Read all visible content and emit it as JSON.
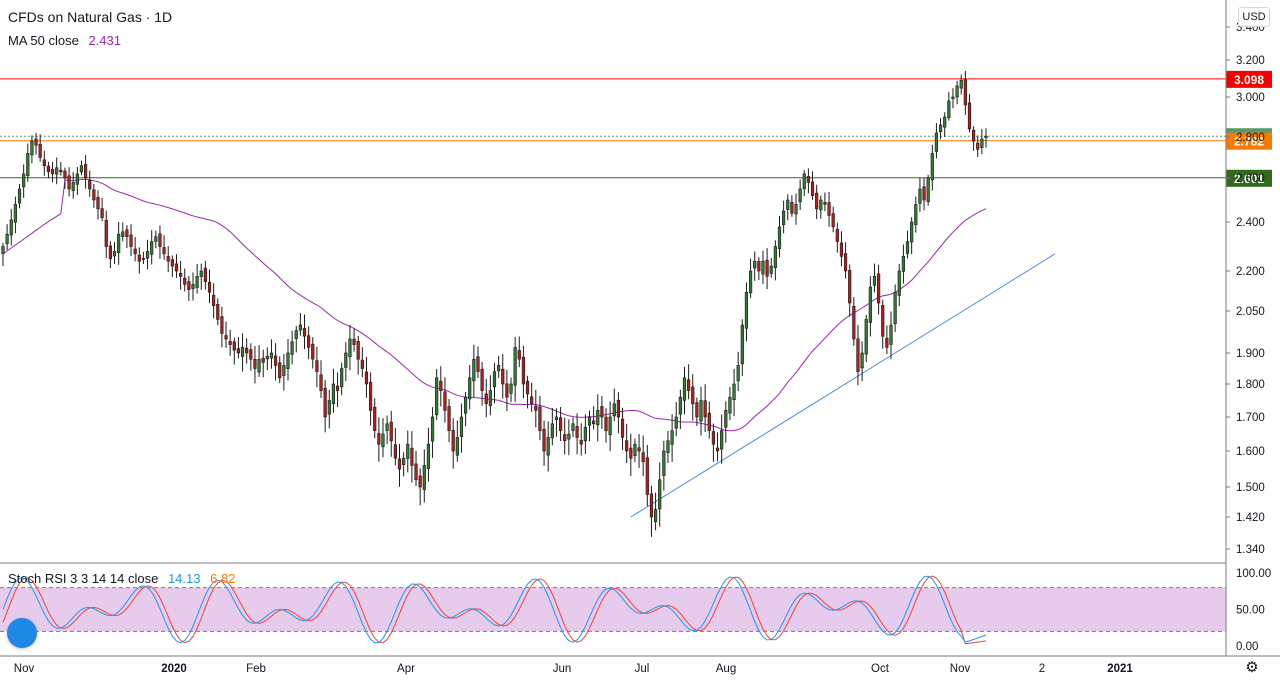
{
  "header": {
    "title": "CFDs on Natural Gas · 1D",
    "ma_label": "MA 50 close",
    "ma_value": "2.431",
    "currency": "USD"
  },
  "oscillator": {
    "label": "Stoch RSI 3 3 14 14 close",
    "k_value": "14.13",
    "d_value": "6.82",
    "ticks": [
      "100.00",
      "50.00",
      "0.00"
    ],
    "upper_band": 80,
    "lower_band": 20
  },
  "price_axis": {
    "ticks": [
      "3.400",
      "3.200",
      "3.000",
      "2.800",
      "2.600",
      "2.400",
      "2.200",
      "2.050",
      "1.900",
      "1.800",
      "1.700",
      "1.600",
      "1.500",
      "1.420",
      "1.340"
    ]
  },
  "time_axis": {
    "ticks": [
      "Nov",
      "2020",
      "Feb",
      "Apr",
      "Jun",
      "Jul",
      "Aug",
      "Oct",
      "Nov",
      "2",
      "2021"
    ]
  },
  "levels": [
    {
      "value": 3.098,
      "label": "3.098",
      "color": "#f50000",
      "style": "solid"
    },
    {
      "value": 2.804,
      "label": "2.804",
      "color": "#5b9a68",
      "style": "dotted"
    },
    {
      "value": 2.782,
      "label": "2.782",
      "color": "#f57c00",
      "style": "solid"
    },
    {
      "value": 2.601,
      "label": "2.601",
      "color": "#33691e",
      "style": "solid"
    }
  ],
  "colors": {
    "up": "#2e7d32",
    "down": "#b71c1c",
    "ma": "#9c27b0",
    "trendline": "#4a90e2",
    "stoch_k": "#2196f3",
    "stoch_d": "#f44336",
    "band_fill": "#e1bee7"
  },
  "chart_data": [
    {
      "type": "line",
      "title": "CFDs on Natural Gas · 1D",
      "series_type": "candlestick",
      "x_range": [
        "Nov 2019",
        "Jan 2021"
      ],
      "ylim": [
        1.3,
        3.45
      ],
      "grid": false,
      "closes": [
        2.3,
        2.35,
        2.41,
        2.48,
        2.55,
        2.62,
        2.72,
        2.78,
        2.76,
        2.7,
        2.66,
        2.63,
        2.62,
        2.65,
        2.63,
        2.6,
        2.55,
        2.58,
        2.62,
        2.66,
        2.6,
        2.55,
        2.5,
        2.46,
        2.42,
        2.3,
        2.25,
        2.28,
        2.35,
        2.36,
        2.34,
        2.3,
        2.27,
        2.24,
        2.25,
        2.28,
        2.32,
        2.34,
        2.3,
        2.27,
        2.24,
        2.22,
        2.2,
        2.18,
        2.15,
        2.13,
        2.15,
        2.18,
        2.2,
        2.16,
        2.12,
        2.07,
        2.02,
        1.97,
        1.95,
        1.93,
        1.91,
        1.9,
        1.92,
        1.9,
        1.88,
        1.85,
        1.88,
        1.87,
        1.89,
        1.9,
        1.86,
        1.82,
        1.86,
        1.9,
        1.94,
        1.98,
        2.0,
        1.96,
        1.92,
        1.88,
        1.84,
        1.78,
        1.7,
        1.75,
        1.8,
        1.78,
        1.85,
        1.9,
        1.95,
        1.93,
        1.88,
        1.85,
        1.8,
        1.72,
        1.66,
        1.62,
        1.65,
        1.68,
        1.63,
        1.58,
        1.55,
        1.58,
        1.62,
        1.56,
        1.52,
        1.5,
        1.56,
        1.62,
        1.7,
        1.82,
        1.78,
        1.72,
        1.66,
        1.6,
        1.64,
        1.7,
        1.76,
        1.82,
        1.88,
        1.84,
        1.78,
        1.74,
        1.78,
        1.84,
        1.86,
        1.8,
        1.76,
        1.8,
        1.92,
        1.88,
        1.8,
        1.77,
        1.74,
        1.72,
        1.66,
        1.6,
        1.64,
        1.68,
        1.7,
        1.66,
        1.63,
        1.65,
        1.68,
        1.64,
        1.62,
        1.67,
        1.7,
        1.68,
        1.72,
        1.7,
        1.66,
        1.7,
        1.74,
        1.7,
        1.64,
        1.6,
        1.58,
        1.62,
        1.6,
        1.57,
        1.48,
        1.42,
        1.44,
        1.52,
        1.6,
        1.63,
        1.66,
        1.7,
        1.76,
        1.82,
        1.78,
        1.74,
        1.7,
        1.75,
        1.7,
        1.66,
        1.62,
        1.6,
        1.66,
        1.72,
        1.76,
        1.8,
        1.86,
        2.0,
        2.12,
        2.2,
        2.24,
        2.2,
        2.24,
        2.18,
        2.22,
        2.3,
        2.38,
        2.45,
        2.5,
        2.44,
        2.48,
        2.55,
        2.62,
        2.58,
        2.52,
        2.46,
        2.5,
        2.48,
        2.43,
        2.38,
        2.32,
        2.26,
        2.2,
        2.08,
        1.95,
        1.84,
        1.9,
        2.02,
        2.14,
        2.18,
        2.08,
        1.96,
        1.92,
        2.0,
        2.12,
        2.2,
        2.26,
        2.32,
        2.4,
        2.48,
        2.55,
        2.5,
        2.6,
        2.72,
        2.82,
        2.86,
        2.9,
        2.98,
        3.0,
        3.06,
        3.09,
        2.96,
        2.84,
        2.78,
        2.74,
        2.79,
        2.804
      ]
    },
    {
      "type": "line",
      "title": "Stoch RSI 3 3 14 14 close",
      "ylim": [
        0,
        100
      ],
      "series": [
        {
          "name": "K",
          "last": 14.13
        },
        {
          "name": "D",
          "last": 6.82
        }
      ],
      "bands": [
        20,
        80
      ]
    }
  ]
}
